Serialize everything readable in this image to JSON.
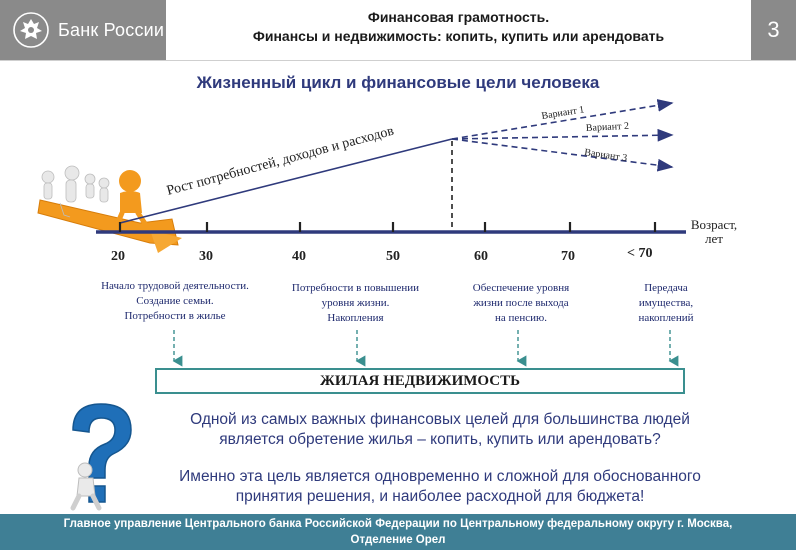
{
  "header": {
    "bank_name": "Банк России",
    "title_line1": "Финансовая грамотность.",
    "title_line2": "Финансы и недвижимость: копить, купить или арендовать",
    "slide_number": "3"
  },
  "section_title": "Жизненный цикл и финансовые цели человека",
  "timeline": {
    "growth_label": "Рост потребностей, доходов и расходов",
    "variants": [
      "Вариант 1",
      "Вариант 2",
      "Вариант 3"
    ],
    "axis_title_line1": "Возраст,",
    "axis_title_line2": "лет",
    "ages": [
      "20",
      "30",
      "40",
      "50",
      "60",
      "70",
      "< 70"
    ]
  },
  "goals": [
    {
      "lines": [
        "Начало трудовой деятельности.",
        "Создание семьи.",
        "Потребности в жилье"
      ]
    },
    {
      "lines": [
        "Потребности в повышении",
        "уровня жизни.",
        "Накопления"
      ]
    },
    {
      "lines": [
        "Обеспечение уровня",
        "жизни после выхода",
        "на пенсию."
      ]
    },
    {
      "lines": [
        "Передача",
        "имущества,",
        "накоплений"
      ]
    }
  ],
  "housing_label": "ЖИЛАЯ НЕДВИЖИМОСТЬ",
  "paragraph1": {
    "line1": "Одной из самых важных финансовых целей для большинства людей",
    "line2": "является обретение жилья – копить, купить или арендовать?"
  },
  "paragraph2": {
    "line1": "Именно эта цель является одновременно и сложной для обоснованного",
    "line2": "принятия решения, и наиболее расходной для бюджета!"
  },
  "footer": {
    "line1": "Главное управление Центрального банка Российской Федерации по Центральному федеральному округу г. Москва,",
    "line2": "Отделение Орел"
  },
  "colors": {
    "header_gray": "#8a8a8a",
    "navy": "#2f3a7c",
    "footer_teal": "#3f7f95",
    "box_border": "#3a8f8f",
    "figure_orange": "#f39a1e",
    "question_blue": "#1f6fb8"
  },
  "icons": [
    "bank-emblem-icon",
    "people-climbing-arrow-illustration",
    "question-mark-person-illustration"
  ]
}
